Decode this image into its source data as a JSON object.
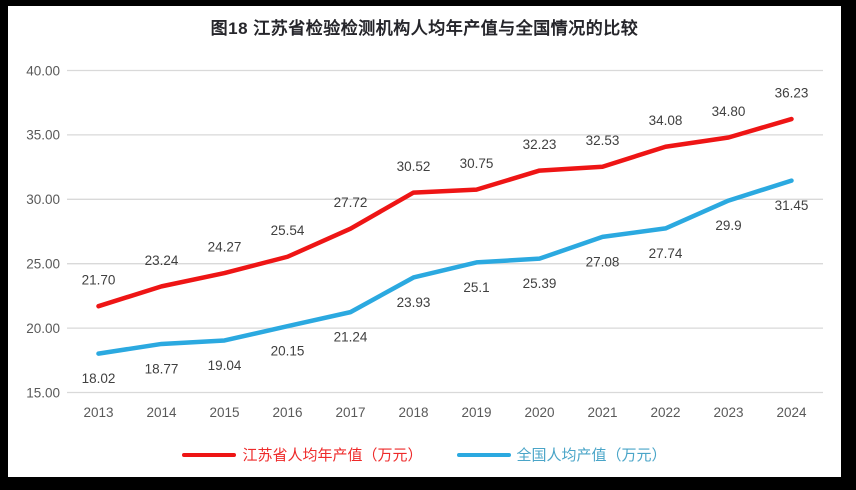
{
  "title": "图18  江苏省检验检测机构人均年产值与全国情况的比较",
  "colors": {
    "frame": "#000000",
    "background": "#ffffff",
    "gridline": "#d9d9d9",
    "axis_text": "#595959",
    "data_label_text": "#404040",
    "title_text": "#26262b"
  },
  "chart_data": {
    "type": "line",
    "title": "图18  江苏省检验检测机构人均年产值与全国情况的比较",
    "categories": [
      "2013",
      "2014",
      "2015",
      "2016",
      "2017",
      "2018",
      "2019",
      "2020",
      "2021",
      "2022",
      "2023",
      "2024"
    ],
    "series": [
      {
        "name": "江苏省人均年产值（万元）",
        "color": "#ee1515",
        "legend_text_color": "#ee2a2a",
        "label_position": "above",
        "values": [
          21.7,
          23.24,
          24.27,
          25.54,
          27.72,
          30.52,
          30.75,
          32.23,
          32.53,
          34.08,
          34.8,
          36.23
        ],
        "labels": [
          "21.70",
          "23.24",
          "24.27",
          "25.54",
          "27.72",
          "30.52",
          "30.75",
          "32.23",
          "32.53",
          "34.08",
          "34.80",
          "36.23"
        ]
      },
      {
        "name": "全国人均产值（万元）",
        "color": "#2ba9e0",
        "legend_text_color": "#4aa5c8",
        "label_position": "below",
        "values": [
          18.02,
          18.77,
          19.04,
          20.15,
          21.24,
          23.93,
          25.1,
          25.39,
          27.08,
          27.74,
          29.9,
          31.45
        ],
        "labels": [
          "18.02",
          "18.77",
          "19.04",
          "20.15",
          "21.24",
          "23.93",
          "25.1",
          "25.39",
          "27.08",
          "27.74",
          "29.9",
          "31.45"
        ]
      }
    ],
    "ylim": [
      15,
      40
    ],
    "yticks": [
      {
        "value": 40,
        "label": "40.00"
      },
      {
        "value": 35,
        "label": "35.00"
      },
      {
        "value": 30,
        "label": "30.00"
      },
      {
        "value": 25,
        "label": "25.00"
      },
      {
        "value": 20,
        "label": "20.00"
      },
      {
        "value": 15,
        "label": "15.00"
      }
    ],
    "grid": true,
    "legend_position": "bottom"
  }
}
